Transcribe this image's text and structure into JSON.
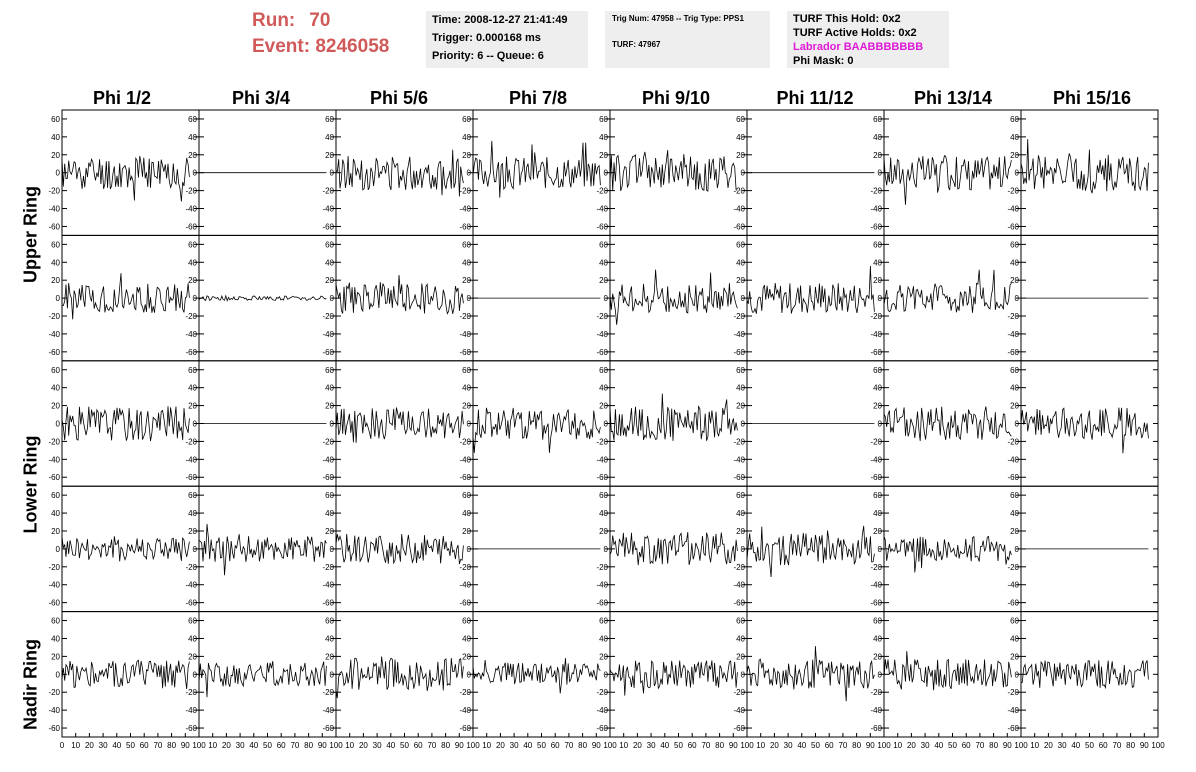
{
  "header": {
    "run_label": "Run:",
    "run_value": "70",
    "event_label": "Event:",
    "event_value": "8246058",
    "time": "Time: 2008-12-27 21:41:49",
    "trigger": "Trigger: 0.000168 ms",
    "priority": "Priority: 6 -- Queue: 6",
    "trig_num": "Trig Num: 47958 -- Trig Type: PPS1",
    "turf": "TURF: 47967",
    "turf_hold": "TURF This Hold: 0x2",
    "turf_active": "TURF Active Holds: 0x2",
    "labrador": "Labrador BAABBBBBBB",
    "phi_mask": "Phi Mask: 0",
    "labrador_color": "#e019d8",
    "run_color": "#d05a5a"
  },
  "columns": [
    "Phi 1/2",
    "Phi 3/4",
    "Phi 5/6",
    "Phi 7/8",
    "Phi 9/10",
    "Phi 11/12",
    "Phi 13/14",
    "Phi 15/16"
  ],
  "rows": [
    "Upper Ring",
    "Lower Ring",
    "Nadir Ring"
  ],
  "chart_data": {
    "type": "line",
    "panel_grid": {
      "rows": 5,
      "cols": 8
    },
    "ylim": [
      -70,
      70
    ],
    "yticks": [
      -60,
      -40,
      -20,
      0,
      20,
      40,
      60
    ],
    "xlim": [
      0,
      100
    ],
    "xticks": [
      0,
      10,
      20,
      30,
      40,
      50,
      60,
      70,
      80,
      90,
      100
    ],
    "xtick_labels": [
      "0",
      "10",
      "20",
      "30",
      "40",
      "50",
      "60",
      "70",
      "80",
      "90",
      "100"
    ],
    "samples_per_panel": 96,
    "panels": [
      {
        "row": 0,
        "col": 0,
        "amplitude": 15,
        "seed": 11,
        "note": "waveform"
      },
      {
        "row": 0,
        "col": 1,
        "amplitude": 0,
        "seed": 12,
        "note": "flat"
      },
      {
        "row": 0,
        "col": 2,
        "amplitude": 15,
        "seed": 13,
        "note": "waveform"
      },
      {
        "row": 0,
        "col": 3,
        "amplitude": 14,
        "seed": 14,
        "note": "waveform"
      },
      {
        "row": 0,
        "col": 4,
        "amplitude": 16,
        "seed": 15,
        "note": "waveform"
      },
      {
        "row": 0,
        "col": 5,
        "amplitude": 0,
        "seed": 16,
        "note": "flat"
      },
      {
        "row": 0,
        "col": 6,
        "amplitude": 15,
        "seed": 17,
        "note": "waveform"
      },
      {
        "row": 0,
        "col": 7,
        "amplitude": 16,
        "seed": 18,
        "note": "waveform"
      },
      {
        "row": 1,
        "col": 0,
        "amplitude": 13,
        "seed": 21,
        "note": "waveform"
      },
      {
        "row": 1,
        "col": 1,
        "amplitude": 2,
        "seed": 22,
        "note": "small"
      },
      {
        "row": 1,
        "col": 2,
        "amplitude": 14,
        "seed": 23,
        "note": "waveform"
      },
      {
        "row": 1,
        "col": 3,
        "amplitude": 0,
        "seed": 24,
        "note": "flat"
      },
      {
        "row": 1,
        "col": 4,
        "amplitude": 13,
        "seed": 25,
        "note": "waveform"
      },
      {
        "row": 1,
        "col": 5,
        "amplitude": 14,
        "seed": 26,
        "note": "waveform"
      },
      {
        "row": 1,
        "col": 6,
        "amplitude": 13,
        "seed": 27,
        "note": "waveform"
      },
      {
        "row": 1,
        "col": 7,
        "amplitude": 0,
        "seed": 28,
        "note": "flat"
      },
      {
        "row": 2,
        "col": 0,
        "amplitude": 15,
        "seed": 31,
        "note": "waveform"
      },
      {
        "row": 2,
        "col": 1,
        "amplitude": 0,
        "seed": 32,
        "note": "flat"
      },
      {
        "row": 2,
        "col": 2,
        "amplitude": 14,
        "seed": 33,
        "note": "waveform"
      },
      {
        "row": 2,
        "col": 3,
        "amplitude": 14,
        "seed": 34,
        "note": "waveform"
      },
      {
        "row": 2,
        "col": 4,
        "amplitude": 15,
        "seed": 35,
        "note": "waveform"
      },
      {
        "row": 2,
        "col": 5,
        "amplitude": 0,
        "seed": 36,
        "note": "flat"
      },
      {
        "row": 2,
        "col": 6,
        "amplitude": 15,
        "seed": 37,
        "note": "waveform"
      },
      {
        "row": 2,
        "col": 7,
        "amplitude": 14,
        "seed": 38,
        "note": "waveform"
      },
      {
        "row": 3,
        "col": 0,
        "amplitude": 11,
        "seed": 41,
        "note": "waveform"
      },
      {
        "row": 3,
        "col": 1,
        "amplitude": 12,
        "seed": 42,
        "note": "waveform"
      },
      {
        "row": 3,
        "col": 2,
        "amplitude": 13,
        "seed": 43,
        "note": "waveform"
      },
      {
        "row": 3,
        "col": 3,
        "amplitude": 0,
        "seed": 44,
        "note": "flat"
      },
      {
        "row": 3,
        "col": 4,
        "amplitude": 14,
        "seed": 45,
        "note": "waveform"
      },
      {
        "row": 3,
        "col": 5,
        "amplitude": 14,
        "seed": 46,
        "note": "waveform"
      },
      {
        "row": 3,
        "col": 6,
        "amplitude": 11,
        "seed": 47,
        "note": "waveform"
      },
      {
        "row": 3,
        "col": 7,
        "amplitude": 0,
        "seed": 48,
        "note": "flat"
      },
      {
        "row": 4,
        "col": 0,
        "amplitude": 13,
        "seed": 51,
        "note": "waveform"
      },
      {
        "row": 4,
        "col": 1,
        "amplitude": 11,
        "seed": 52,
        "note": "waveform"
      },
      {
        "row": 4,
        "col": 2,
        "amplitude": 14,
        "seed": 53,
        "note": "waveform"
      },
      {
        "row": 4,
        "col": 3,
        "amplitude": 10,
        "seed": 54,
        "note": "waveform"
      },
      {
        "row": 4,
        "col": 4,
        "amplitude": 12,
        "seed": 55,
        "note": "waveform"
      },
      {
        "row": 4,
        "col": 5,
        "amplitude": 13,
        "seed": 56,
        "note": "waveform"
      },
      {
        "row": 4,
        "col": 6,
        "amplitude": 13,
        "seed": 57,
        "note": "waveform"
      },
      {
        "row": 4,
        "col": 7,
        "amplitude": 12,
        "seed": 58,
        "note": "waveform"
      }
    ]
  }
}
